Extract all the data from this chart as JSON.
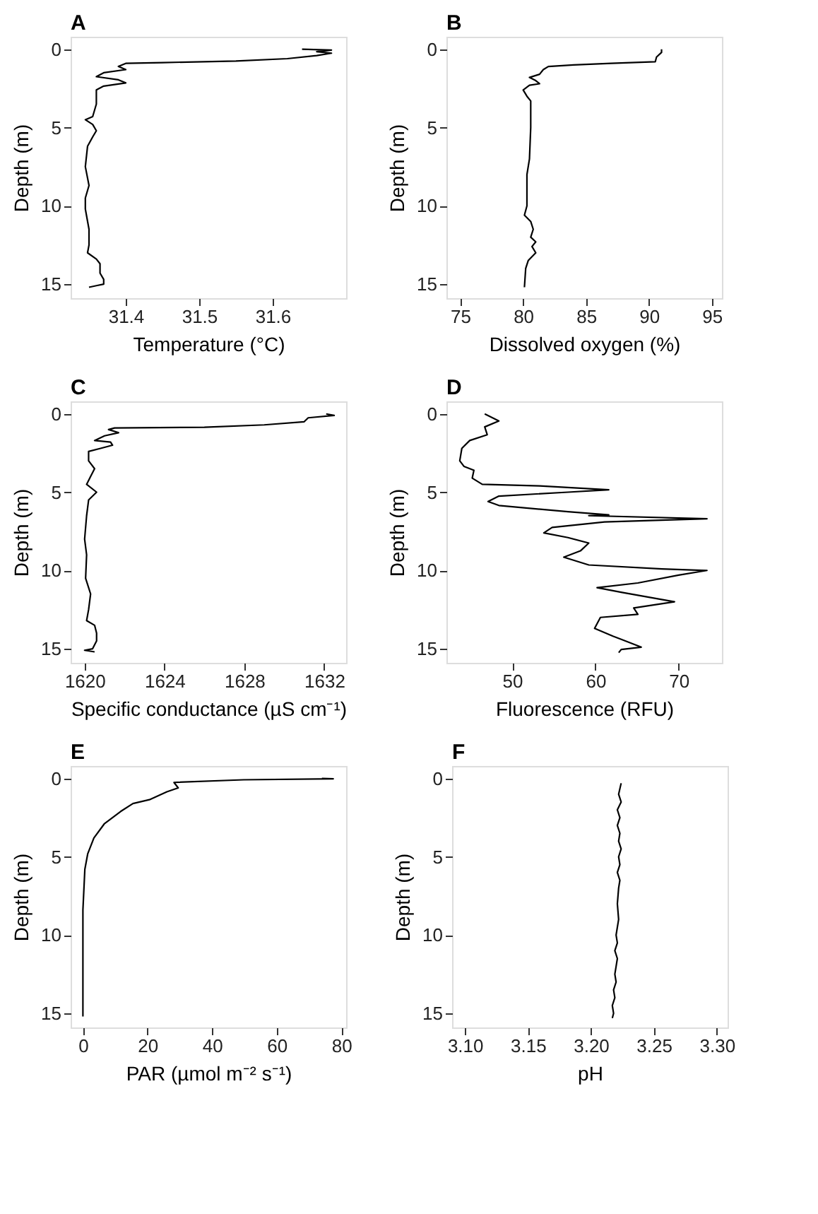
{
  "chart_data": [
    {
      "type": "line",
      "title": "A",
      "xlabel": "Temperature (°C)",
      "ylabel": "Depth (m)",
      "xlim": [
        31.325,
        31.7
      ],
      "xticks": [
        31.4,
        31.5,
        31.6
      ],
      "ylim": [
        15.9,
        -0.8
      ],
      "yticks": [
        0,
        5,
        10,
        15
      ],
      "grid": false,
      "series": [
        {
          "color": "#000000",
          "x": [
            31.64,
            31.68,
            31.66,
            31.68,
            31.66,
            31.62,
            31.55,
            31.45,
            31.4,
            31.39,
            31.4,
            31.37,
            31.36,
            31.39,
            31.4,
            31.37,
            31.36,
            31.36,
            31.355,
            31.345,
            31.355,
            31.36,
            31.355,
            31.348,
            31.345,
            31.35,
            31.345,
            31.345,
            31.35,
            31.35,
            31.348,
            31.36,
            31.365,
            31.365,
            31.37,
            31.37,
            31.36,
            31.35
          ],
          "values": [
            0,
            0.05,
            0.15,
            0.25,
            0.4,
            0.6,
            0.75,
            0.85,
            0.9,
            1.1,
            1.3,
            1.5,
            1.75,
            1.95,
            2.15,
            2.35,
            2.6,
            3.5,
            4.3,
            4.5,
            4.8,
            5.2,
            5.6,
            6.2,
            7.5,
            8.7,
            9.5,
            10.2,
            11.5,
            12.5,
            13,
            13.4,
            13.7,
            14.3,
            14.7,
            15,
            15.1,
            15.2
          ]
        }
      ]
    },
    {
      "type": "line",
      "title": "B",
      "xlabel": "Dissolved oxygen (%)",
      "ylabel": "Depth (m)",
      "xlim": [
        73.9,
        95.8
      ],
      "xticks": [
        75,
        80,
        85,
        90,
        95
      ],
      "ylim": [
        15.9,
        -0.8
      ],
      "yticks": [
        0,
        5,
        10,
        15
      ],
      "grid": false,
      "series": [
        {
          "color": "#000000",
          "x": [
            91,
            91,
            90.6,
            90.5,
            87,
            84,
            82,
            81.6,
            81.3,
            80.5,
            81,
            81.3,
            80.5,
            80,
            80.3,
            80.6,
            80.6,
            80.5,
            80.3,
            80.3,
            80.1,
            80.6,
            80.8,
            80.6,
            81,
            80.7,
            81,
            80.4,
            80.2,
            80.1
          ],
          "values": [
            0,
            0.2,
            0.5,
            0.8,
            0.9,
            1,
            1.1,
            1.3,
            1.6,
            1.8,
            2,
            2.2,
            2.3,
            2.6,
            3,
            3.3,
            5,
            7,
            8,
            10,
            10.6,
            11,
            11.5,
            12,
            12.3,
            12.6,
            13,
            13.5,
            14,
            15.2
          ]
        }
      ]
    },
    {
      "type": "line",
      "title": "C",
      "xlabel": "Specific conductance (µS cm⁻¹)",
      "ylabel": "Depth (m)",
      "xlim": [
        1619.3,
        1633.1
      ],
      "xticks": [
        1620,
        1624,
        1628,
        1632
      ],
      "ylim": [
        15.9,
        -0.8
      ],
      "yticks": [
        0,
        5,
        10,
        15
      ],
      "grid": false,
      "series": [
        {
          "color": "#000000",
          "x": [
            1632.1,
            1632.5,
            1631.2,
            1631,
            1629,
            1626,
            1621.5,
            1621.2,
            1621.7,
            1621,
            1620.5,
            1621.3,
            1621.4,
            1620.8,
            1620.2,
            1620.2,
            1620.5,
            1620.3,
            1620.1,
            1620.6,
            1620.2,
            1620.1,
            1620,
            1620.1,
            1620.05,
            1620.3,
            1620.2,
            1620.1,
            1620.5,
            1620.6,
            1620.6,
            1620.4,
            1620,
            1620.5
          ],
          "values": [
            0,
            0.1,
            0.25,
            0.5,
            0.7,
            0.85,
            0.9,
            1,
            1.2,
            1.4,
            1.7,
            1.8,
            2,
            2.2,
            2.4,
            3,
            3.5,
            4,
            4.5,
            5,
            5.5,
            6.5,
            8,
            9,
            10.5,
            11.5,
            12.5,
            13.2,
            13.5,
            14,
            14.5,
            15,
            15.1,
            15.2
          ]
        }
      ]
    },
    {
      "type": "line",
      "title": "D",
      "xlabel": "Fluorescence (RFU)",
      "ylabel": "Depth (m)",
      "xlim": [
        42.1,
        75.2
      ],
      "xticks": [
        50,
        60,
        70
      ],
      "ylim": [
        15.9,
        -0.8
      ],
      "yticks": [
        0,
        5,
        10,
        15
      ],
      "grid": false,
      "series": [
        {
          "color": "#000000",
          "x": [
            46.7,
            48.4,
            46.7,
            47,
            44.9,
            43.95,
            43.7,
            44.2,
            45.4,
            45.2,
            46.4,
            53.3,
            61.6,
            56.7,
            48.4,
            47.1,
            48.4,
            56.7,
            61.6,
            59.2,
            73.4,
            61.1,
            54.8,
            53.8,
            56.7,
            59.2,
            58.2,
            56.2,
            59.2,
            68,
            73.4,
            70,
            65.1,
            60.2,
            63.2,
            69.5,
            64.6,
            65.1,
            60.6,
            59.9,
            62.1,
            63.1,
            65.5,
            63.1,
            62.8
          ],
          "values": [
            0,
            0.45,
            0.83,
            1.33,
            1.7,
            2.2,
            3,
            3.35,
            3.6,
            4.1,
            4.5,
            4.6,
            4.85,
            5,
            5.25,
            5.6,
            5.85,
            6.25,
            6.45,
            6.5,
            6.7,
            6.9,
            7.25,
            7.6,
            7.9,
            8.25,
            8.75,
            9.15,
            9.65,
            9.9,
            10,
            10.3,
            10.8,
            11.1,
            11.4,
            12,
            12.4,
            12.8,
            13,
            13.7,
            14.2,
            14.4,
            14.9,
            15.05,
            15.25
          ]
        }
      ]
    },
    {
      "type": "line",
      "title": "E",
      "xlabel": "PAR (µmol m⁻² s⁻¹)",
      "ylabel": "Depth (m)",
      "xlim": [
        -3.8,
        81.5
      ],
      "xticks": [
        0,
        20,
        40,
        60,
        80
      ],
      "ylim": [
        15.9,
        -0.8
      ],
      "yticks": [
        0,
        5,
        10,
        15
      ],
      "grid": false,
      "series": [
        {
          "color": "#000000",
          "x": [
            74,
            77.5,
            49.8,
            28.2,
            29.5,
            26,
            20.6,
            15.5,
            11.7,
            6.6,
            3.4,
            1.5,
            0.6,
            0.3,
            0,
            0
          ],
          "values": [
            0,
            0.02,
            0.08,
            0.25,
            0.6,
            0.85,
            1.35,
            1.6,
            2.1,
            2.9,
            3.8,
            4.8,
            5.8,
            7.1,
            8.4,
            15.2
          ]
        }
      ]
    },
    {
      "type": "line",
      "title": "F",
      "xlabel": "pH",
      "ylabel": "Depth (m)",
      "xlim": [
        3.0898,
        3.3085
      ],
      "xticks": [
        {
          "value": 3.1,
          "label": "3.10"
        },
        3.15,
        {
          "value": 3.2,
          "label": "3.20"
        },
        3.25,
        {
          "value": 3.3,
          "label": "3.30"
        }
      ],
      "ylim": [
        15.9,
        -0.8
      ],
      "yticks": [
        0,
        5,
        10,
        15
      ],
      "grid": false,
      "series": [
        {
          "color": "#000000",
          "x": [
            3.224,
            3.222,
            3.224,
            3.221,
            3.223,
            3.221,
            3.223,
            3.222,
            3.224,
            3.222,
            3.223,
            3.221,
            3.223,
            3.222,
            3.221,
            3.222,
            3.22,
            3.221,
            3.219,
            3.221,
            3.22,
            3.219,
            3.22,
            3.218,
            3.219,
            3.217,
            3.218,
            3.217
          ],
          "values": [
            0.3,
            1,
            1.5,
            2,
            2.5,
            3,
            3.5,
            4,
            4.5,
            5,
            5.5,
            6,
            6.5,
            7,
            8,
            9,
            10,
            10.5,
            11,
            11.5,
            12,
            12.5,
            13,
            13.5,
            14,
            14.5,
            15,
            15.3
          ]
        }
      ]
    }
  ]
}
